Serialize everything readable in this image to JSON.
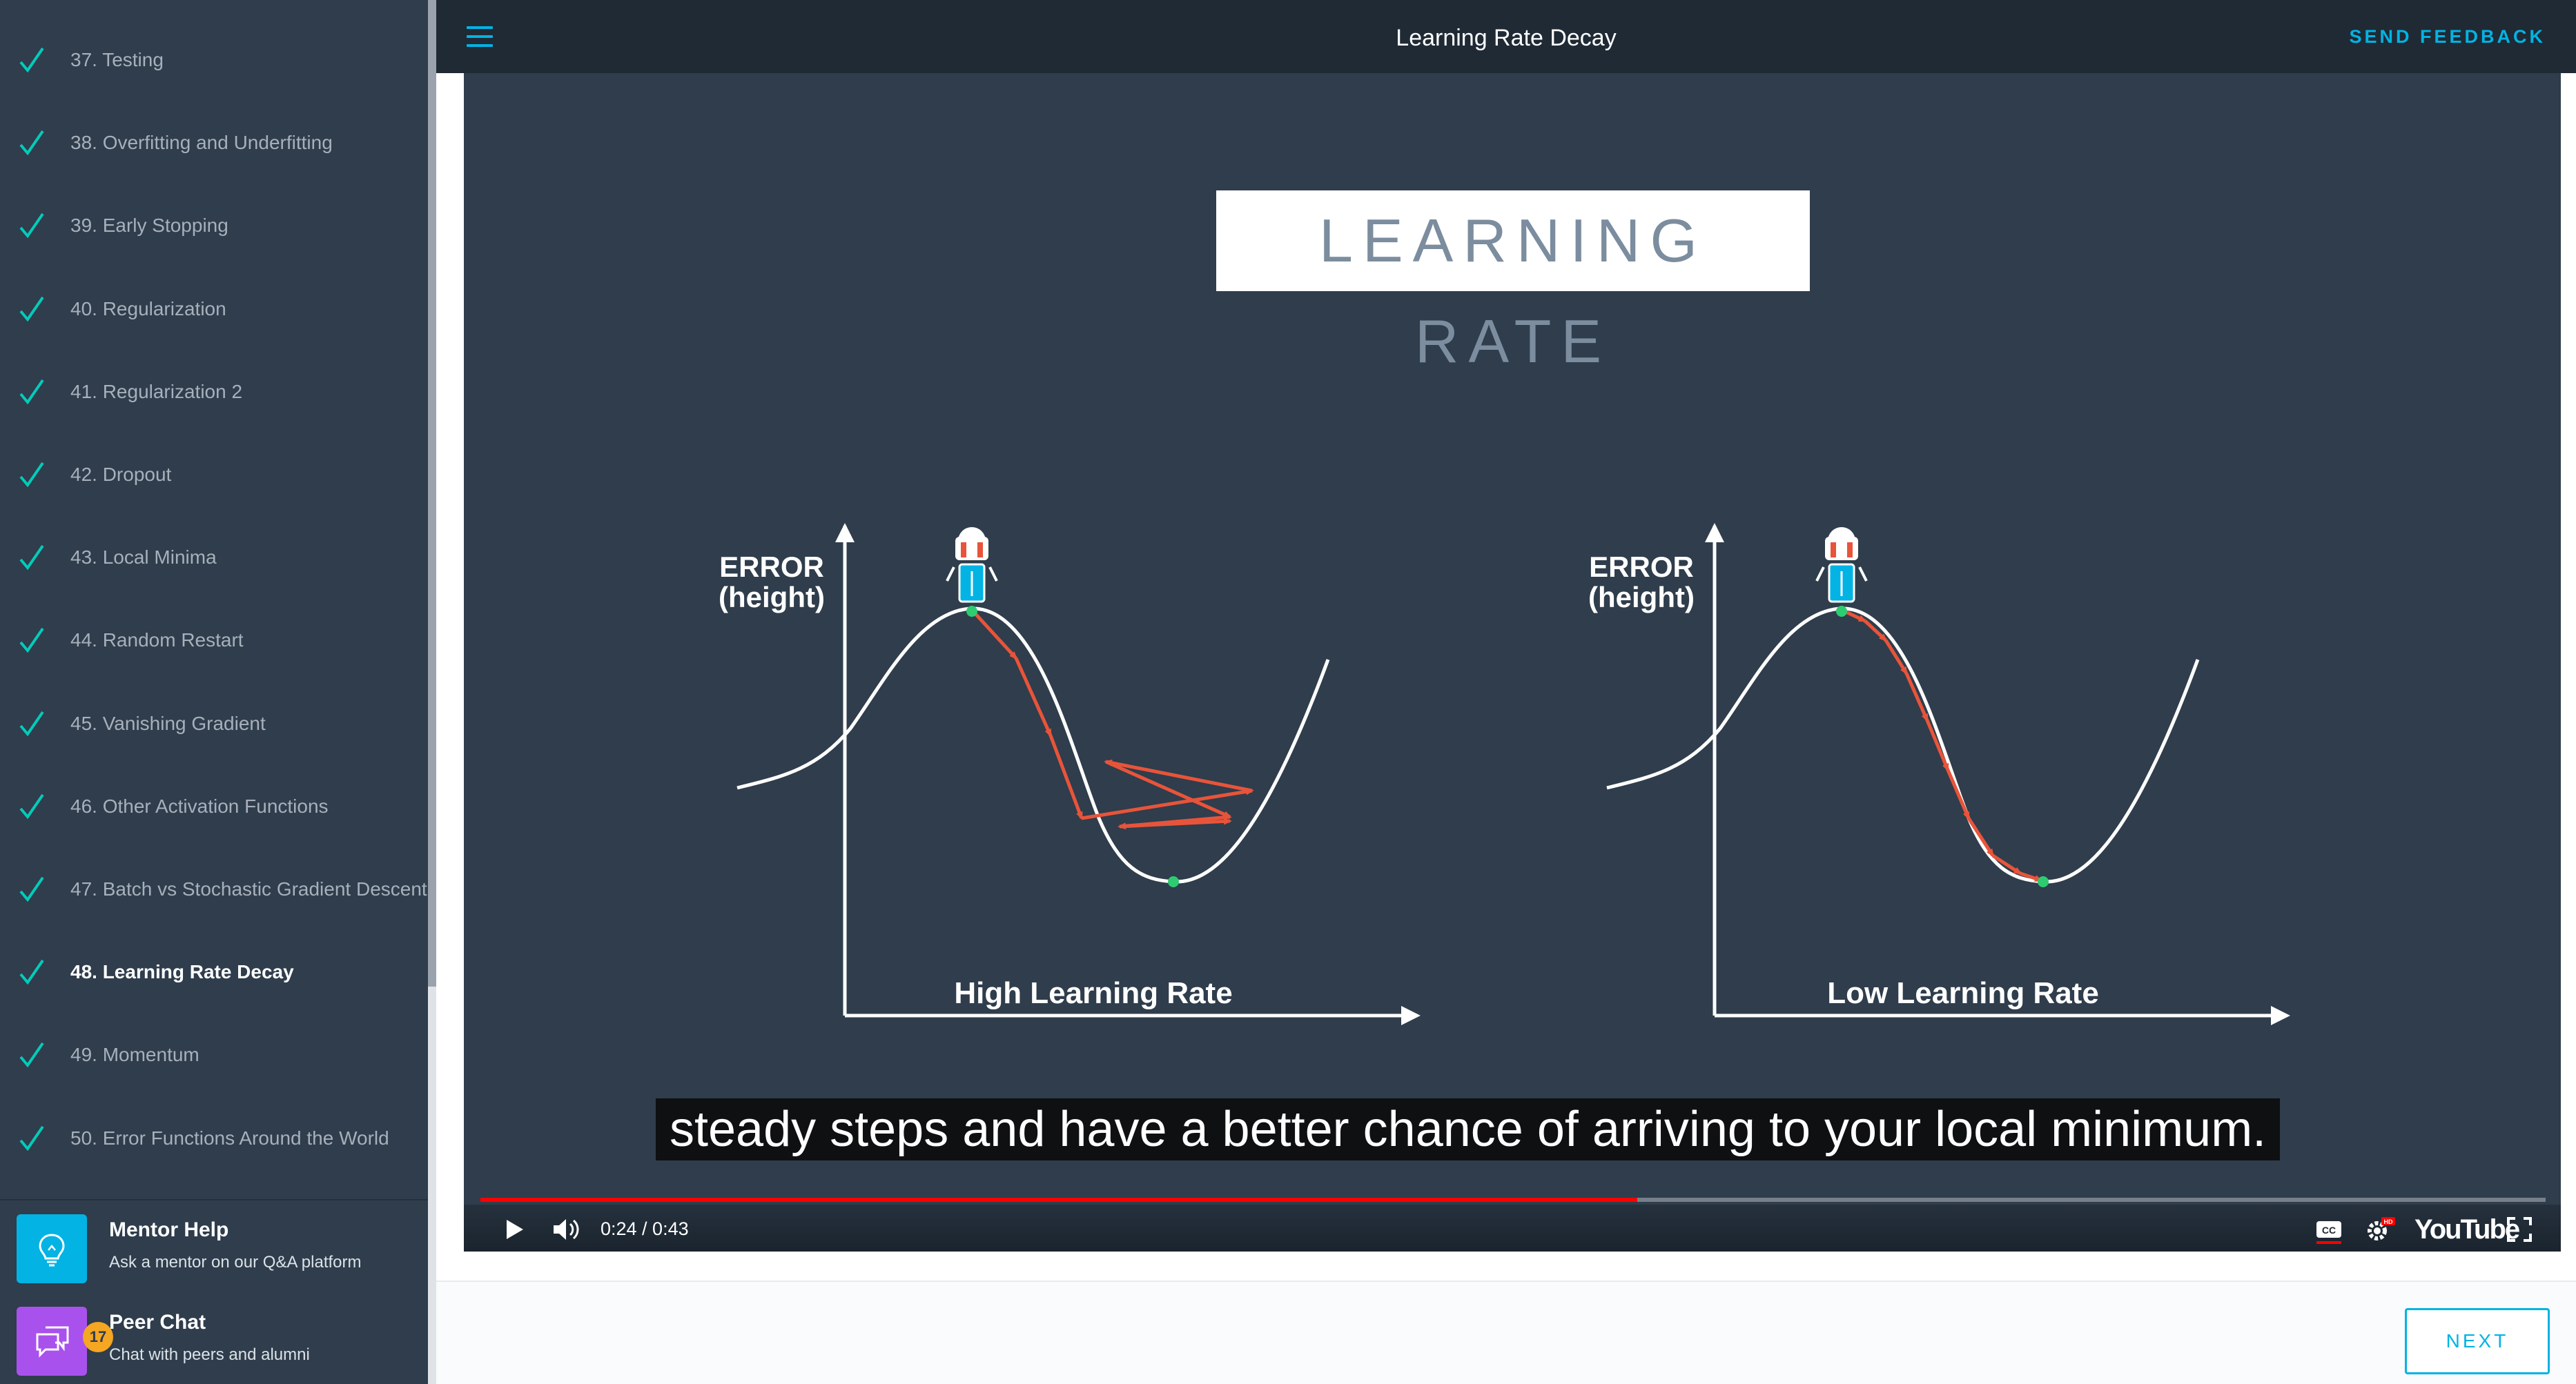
{
  "sidebar": {
    "lessons": [
      {
        "label": "37. Testing",
        "completed": true
      },
      {
        "label": "38. Overfitting and Underfitting",
        "completed": true
      },
      {
        "label": "39. Early Stopping",
        "completed": true
      },
      {
        "label": "40. Regularization",
        "completed": true
      },
      {
        "label": "41. Regularization 2",
        "completed": true
      },
      {
        "label": "42. Dropout",
        "completed": true
      },
      {
        "label": "43. Local Minima",
        "completed": true
      },
      {
        "label": "44. Random Restart",
        "completed": true
      },
      {
        "label": "45. Vanishing Gradient",
        "completed": true
      },
      {
        "label": "46. Other Activation Functions",
        "completed": true
      },
      {
        "label": "47. Batch vs Stochastic Gradient Descent",
        "completed": true
      },
      {
        "label": "48. Learning Rate Decay",
        "completed": true,
        "active": true
      },
      {
        "label": "49. Momentum",
        "completed": true
      },
      {
        "label": "50. Error Functions Around the World",
        "completed": true
      }
    ],
    "mentor_help": {
      "title": "Mentor Help",
      "subtitle": "Ask a mentor on our Q&A platform",
      "icon": "lightbulb-icon",
      "color": "#02b3e4"
    },
    "peer_chat": {
      "title": "Peer Chat",
      "subtitle": "Chat with peers and alumni",
      "badge": "17",
      "icon": "chat-icon",
      "color": "#a951ed"
    }
  },
  "header": {
    "title": "Learning Rate Decay",
    "feedback_label": "SEND FEEDBACK",
    "menu_icon": "hamburger-icon"
  },
  "video": {
    "slide_title": "LEARNING RATE",
    "y_axis_label_line1": "ERROR",
    "y_axis_label_line2": "(height)",
    "left_plot_label": "High Learning Rate",
    "right_plot_label": "Low Learning Rate",
    "caption": "steady steps and have a better chance of arriving to your local minimum.",
    "time": "0:24 / 0:43",
    "progress": 0.56,
    "youtube_label": "YouTube",
    "accent": "#ff0000"
  },
  "footer": {
    "next_label": "NEXT"
  },
  "colors": {
    "accent": "#02b3e4",
    "sidebar_bg": "#2f3d4c",
    "check": "#02ccba",
    "arrow": "#e8543a"
  }
}
